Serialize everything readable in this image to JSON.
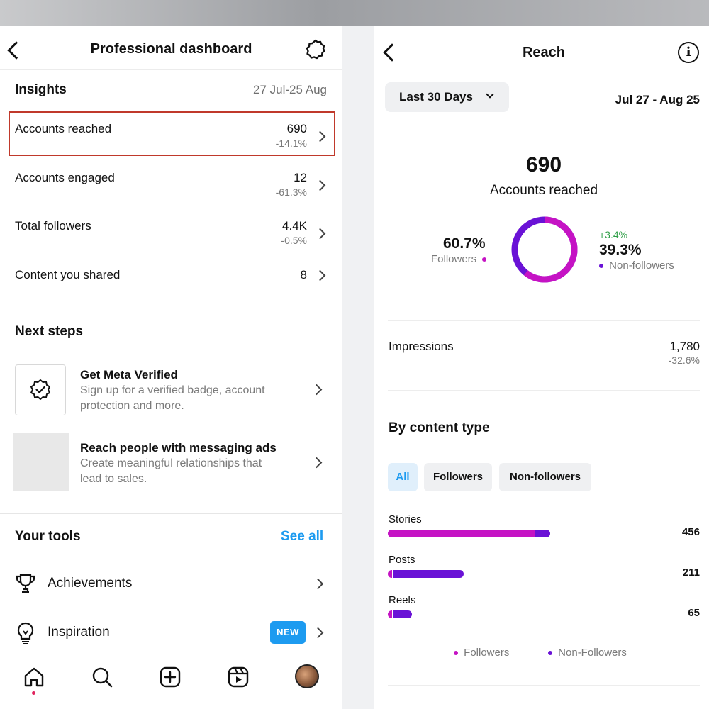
{
  "colors": {
    "followers": "#c513c4",
    "non_followers": "#6a12d6",
    "accent": "#1d9bf0",
    "positive": "#2e9e46",
    "highlight": "#c0392b"
  },
  "dashboard": {
    "title": "Professional dashboard",
    "insights": {
      "title": "Insights",
      "date_range": "27 Jul-25 Aug",
      "rows": [
        {
          "label": "Accounts reached",
          "value": "690",
          "change": "-14.1%"
        },
        {
          "label": "Accounts engaged",
          "value": "12",
          "change": "-61.3%"
        },
        {
          "label": "Total followers",
          "value": "4.4K",
          "change": "-0.5%"
        },
        {
          "label": "Content you shared",
          "value": "8",
          "change": ""
        }
      ]
    },
    "next_steps": {
      "title": "Next steps",
      "items": [
        {
          "title": "Get Meta Verified",
          "desc": "Sign up for a verified badge, account protection and more.",
          "icon": "verified-badge-icon"
        },
        {
          "title": "Reach people with messaging ads",
          "desc": "Create meaningful relationships that lead to sales."
        }
      ]
    },
    "tools": {
      "title": "Your tools",
      "see_all": "See all",
      "items": [
        {
          "label": "Achievements",
          "icon": "trophy-icon"
        },
        {
          "label": "Inspiration",
          "icon": "lightbulb-icon",
          "badge": "NEW"
        }
      ]
    },
    "tabbar": [
      "home-icon",
      "search-icon",
      "create-icon",
      "reels-icon",
      "profile-avatar"
    ]
  },
  "reach": {
    "title": "Reach",
    "filter_label": "Last 30 Days",
    "date_range": "Jul 27 - Aug 25",
    "total": "690",
    "total_label": "Accounts reached",
    "followers_pct": "60.7%",
    "followers_label": "Followers",
    "non_followers_change": "+3.4%",
    "non_followers_pct": "39.3%",
    "non_followers_label": "Non-followers",
    "donut_followers_fraction": 0.607,
    "impressions": {
      "label": "Impressions",
      "value": "1,780",
      "change": "-32.6%"
    },
    "content_type": {
      "title": "By content type",
      "chips": [
        "All",
        "Followers",
        "Non-followers"
      ],
      "active_chip": 0,
      "bars": [
        {
          "label": "Stories",
          "value": "456",
          "total": 456,
          "followers_fraction": 0.91
        },
        {
          "label": "Posts",
          "value": "211",
          "total": 211,
          "followers_fraction": 0.03
        },
        {
          "label": "Reels",
          "value": "65",
          "total": 65,
          "followers_fraction": 0.12
        }
      ],
      "legend": [
        "Followers",
        "Non-Followers"
      ]
    }
  }
}
